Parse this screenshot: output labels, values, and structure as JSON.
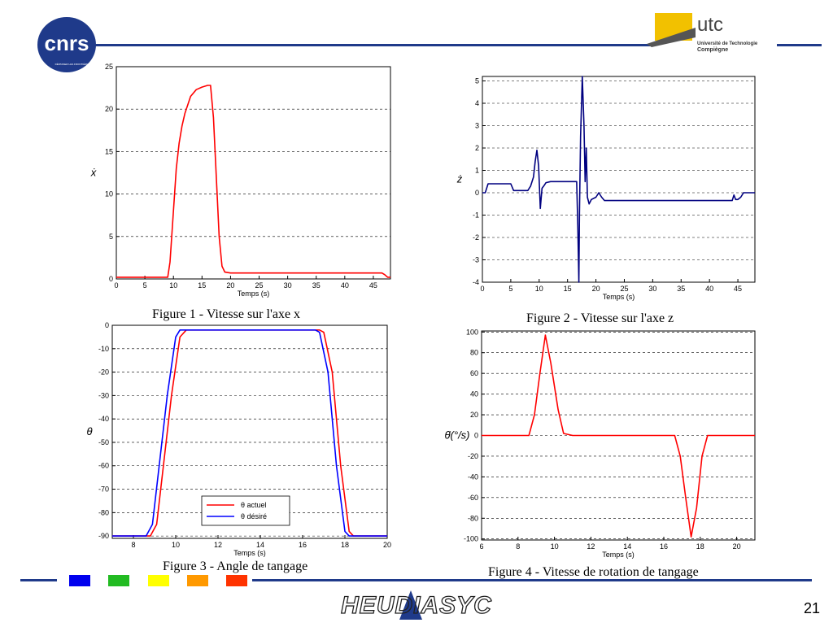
{
  "header": {
    "cnrs_logo_text": "cnrs",
    "cnrs_logo_subtext": "DÉPASSER LES FRONTIÈRES",
    "utc_logo_text": "utc",
    "utc_logo_sub1": "Université de Technologie",
    "utc_logo_sub2": "Compiègne"
  },
  "captions": {
    "fig1": "Figure 1 - Vitesse sur l'axe x",
    "fig2": "Figure 2 - Vitesse sur l'axe z",
    "fig3": "Figure 3 - Angle de tangage",
    "fig4": "Figure 4 - Vitesse de rotation de tangage"
  },
  "footer": {
    "logo_text": "HEUDIASYC",
    "page_number": "21",
    "color_squares": [
      "#0000ee",
      "#22bb22",
      "#ffff00",
      "#ff9900",
      "#ff3300"
    ],
    "bar_color": "#1f3a8a"
  },
  "chart_data": [
    {
      "id": "c1",
      "type": "line",
      "xlabel": "Temps (s)",
      "ylabel": "ẋ",
      "xlim": [
        0,
        48
      ],
      "ylim": [
        0,
        25
      ],
      "xticks": [
        0,
        5,
        10,
        15,
        20,
        25,
        30,
        35,
        40,
        45
      ],
      "yticks": [
        0,
        5,
        10,
        15,
        20,
        25
      ],
      "grid": true,
      "series": [
        {
          "color": "#ff0000",
          "x": [
            0,
            9,
            9.4,
            10,
            10.5,
            11,
            11.5,
            12,
            12.5,
            13,
            14,
            15,
            16,
            16.5,
            17,
            17.5,
            18,
            18.5,
            19,
            20,
            30,
            40,
            46.5,
            47,
            47.5,
            48
          ],
          "y": [
            0.2,
            0.2,
            2,
            8,
            13,
            16,
            18,
            19.5,
            20.5,
            21.5,
            22.3,
            22.6,
            22.8,
            22.8,
            19,
            12,
            5,
            1.5,
            0.8,
            0.7,
            0.7,
            0.7,
            0.7,
            0.5,
            0.2,
            0.2
          ]
        }
      ]
    },
    {
      "id": "c2",
      "type": "line",
      "xlabel": "Temps (s)",
      "ylabel": "ż",
      "xlim": [
        0,
        48
      ],
      "ylim": [
        -4,
        5.2
      ],
      "xticks": [
        0,
        5,
        10,
        15,
        20,
        25,
        30,
        35,
        40,
        45
      ],
      "yticks": [
        -4,
        -3,
        -2,
        -1,
        0,
        1,
        2,
        3,
        4,
        5
      ],
      "grid": true,
      "series": [
        {
          "color": "#000080",
          "x": [
            0,
            0.5,
            1,
            5,
            5.5,
            8,
            8.5,
            9,
            9.3,
            9.6,
            9.9,
            10.2,
            10.5,
            10.8,
            11.2,
            12,
            13,
            15,
            16.6,
            16.8,
            17,
            17.1,
            17.3,
            17.6,
            17.9,
            18.1,
            18.3,
            18.5,
            18.8,
            19.2,
            20,
            20.5,
            21,
            21.5,
            22,
            30,
            40,
            44,
            44.3,
            44.6,
            45,
            45.5,
            46,
            47,
            48
          ],
          "y": [
            0,
            0,
            0.4,
            0.4,
            0.1,
            0.1,
            0.3,
            0.7,
            1.4,
            1.9,
            1.2,
            -0.7,
            0.2,
            0.3,
            0.45,
            0.5,
            0.5,
            0.5,
            0.5,
            -1.5,
            -4,
            -1,
            2.5,
            5.2,
            3,
            0.5,
            2,
            -0.2,
            -0.5,
            -0.3,
            -0.2,
            0,
            -0.2,
            -0.35,
            -0.35,
            -0.35,
            -0.35,
            -0.35,
            -0.1,
            -0.3,
            -0.3,
            -0.2,
            0,
            0,
            0
          ]
        }
      ]
    },
    {
      "id": "c3",
      "type": "line",
      "xlabel": "Temps (s)",
      "ylabel": "θ",
      "xlim": [
        7,
        20
      ],
      "ylim": [
        -91,
        0
      ],
      "xticks": [
        8,
        10,
        12,
        14,
        16,
        18,
        20
      ],
      "yticks": [
        -90,
        -80,
        -70,
        -60,
        -50,
        -40,
        -30,
        -20,
        -10,
        0
      ],
      "grid": true,
      "legend": "bottom-right",
      "series": [
        {
          "name": "θ actuel",
          "color": "#ff0000",
          "x": [
            7,
            8.8,
            9.1,
            9.8,
            10.2,
            10.5,
            16.8,
            17,
            17.4,
            17.8,
            18.2,
            18.4,
            20
          ],
          "y": [
            -90,
            -90,
            -85,
            -30,
            -5,
            -2,
            -2,
            -3,
            -20,
            -60,
            -88,
            -90,
            -90
          ]
        },
        {
          "name": "θ désiré",
          "color": "#0000ff",
          "x": [
            7,
            8.6,
            8.9,
            9.6,
            10,
            10.2,
            16.6,
            16.8,
            17.2,
            17.6,
            18,
            18.2,
            20
          ],
          "y": [
            -90,
            -90,
            -85,
            -30,
            -5,
            -2,
            -2,
            -3,
            -20,
            -60,
            -88,
            -90,
            -90
          ]
        }
      ]
    },
    {
      "id": "c4",
      "type": "line",
      "xlabel": "Temps (s)",
      "ylabel": "θ̇(°/s)",
      "xlim": [
        6,
        21
      ],
      "ylim": [
        -101,
        101
      ],
      "xticks": [
        6,
        8,
        10,
        12,
        14,
        16,
        18,
        20
      ],
      "yticks": [
        -100,
        -80,
        -60,
        -40,
        -20,
        0,
        20,
        40,
        60,
        80,
        100
      ],
      "grid": true,
      "series": [
        {
          "color": "#ff0000",
          "x": [
            6,
            8.6,
            8.9,
            9.2,
            9.5,
            9.8,
            10.2,
            10.5,
            11,
            12,
            14,
            16.6,
            16.9,
            17.2,
            17.5,
            17.8,
            18.1,
            18.4,
            19,
            21
          ],
          "y": [
            0,
            0,
            20,
            60,
            97,
            70,
            25,
            2,
            0,
            0,
            0,
            0,
            -20,
            -60,
            -98,
            -70,
            -20,
            0,
            0,
            0
          ]
        }
      ]
    }
  ]
}
